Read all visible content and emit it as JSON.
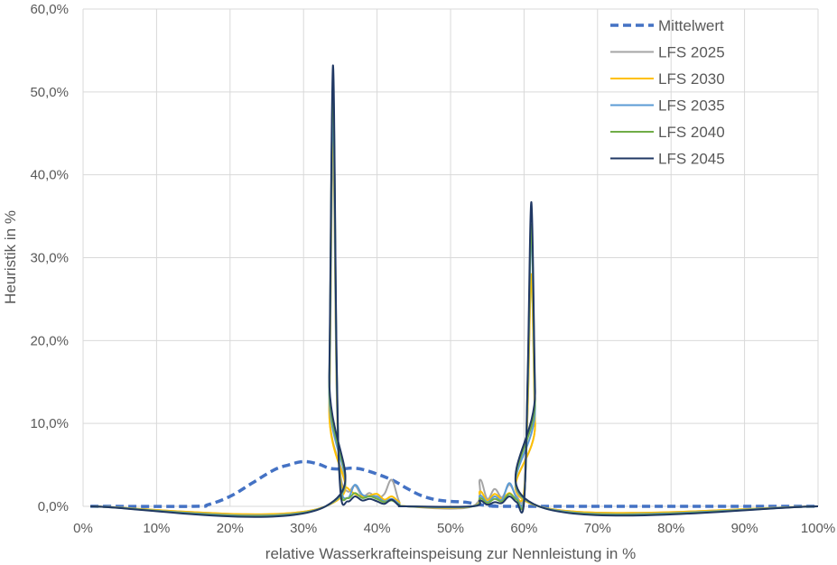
{
  "chart_data": {
    "type": "line",
    "title": "",
    "xlabel": "relative Wasserkrafteinspeisung  zur Nennleistung  in %",
    "ylabel": "Heuristik in %",
    "xlim": [
      0,
      100
    ],
    "ylim": [
      0,
      60
    ],
    "x_ticks": [
      "0%",
      "10%",
      "20%",
      "30%",
      "40%",
      "50%",
      "60%",
      "70%",
      "80%",
      "90%",
      "100%"
    ],
    "y_ticks": [
      "0,0%",
      "10,0%",
      "20,0%",
      "30,0%",
      "40,0%",
      "50,0%",
      "60,0%"
    ],
    "grid": true,
    "legend_position": "top-right",
    "series": [
      {
        "name": "Mittelwert",
        "color": "#4472C4",
        "dash": true,
        "points": [
          [
            1,
            0
          ],
          [
            15,
            0
          ],
          [
            17,
            0.2
          ],
          [
            20,
            1.2
          ],
          [
            23,
            2.8
          ],
          [
            26,
            4.4
          ],
          [
            28,
            5.0
          ],
          [
            30,
            5.4
          ],
          [
            32,
            5.1
          ],
          [
            33.5,
            4.6
          ],
          [
            35,
            4.5
          ],
          [
            37,
            4.6
          ],
          [
            39,
            4.2
          ],
          [
            42,
            3.2
          ],
          [
            44,
            2.2
          ],
          [
            46,
            1.3
          ],
          [
            48,
            0.8
          ],
          [
            50,
            0.6
          ],
          [
            52,
            0.5
          ],
          [
            54,
            0.2
          ],
          [
            56,
            0.05
          ],
          [
            60,
            0
          ],
          [
            100,
            0
          ]
        ]
      },
      {
        "name": "LFS 2025",
        "color": "#A5A5A5",
        "dash": false,
        "points": [
          [
            1,
            0
          ],
          [
            33,
            0
          ],
          [
            33.5,
            12
          ],
          [
            34,
            43
          ],
          [
            34.5,
            14
          ],
          [
            35,
            4
          ],
          [
            36,
            1.8
          ],
          [
            37,
            2.5
          ],
          [
            38,
            1.2
          ],
          [
            39,
            1.6
          ],
          [
            40,
            1.0
          ],
          [
            41,
            1.5
          ],
          [
            42,
            3.2
          ],
          [
            43,
            0.6
          ],
          [
            44,
            0
          ],
          [
            53,
            0
          ],
          [
            54,
            3.2
          ],
          [
            55,
            0.9
          ],
          [
            56,
            2.1
          ],
          [
            57,
            1.1
          ],
          [
            58,
            2.6
          ],
          [
            59,
            1.2
          ],
          [
            60,
            1.3
          ],
          [
            60.5,
            12
          ],
          [
            61,
            28
          ],
          [
            61.5,
            10
          ],
          [
            62,
            0
          ],
          [
            100,
            0
          ]
        ]
      },
      {
        "name": "LFS 2030",
        "color": "#FFC000",
        "dash": false,
        "points": [
          [
            1,
            0
          ],
          [
            33,
            0
          ],
          [
            33.5,
            12
          ],
          [
            34,
            46
          ],
          [
            34.5,
            15
          ],
          [
            35,
            3.5
          ],
          [
            36,
            2.2
          ],
          [
            37,
            1.5
          ],
          [
            38,
            1.2
          ],
          [
            39,
            1.3
          ],
          [
            40,
            1.5
          ],
          [
            41,
            0.8
          ],
          [
            42,
            1.2
          ],
          [
            43,
            0.5
          ],
          [
            44,
            0
          ],
          [
            53,
            0
          ],
          [
            54,
            1.8
          ],
          [
            55,
            0.7
          ],
          [
            56,
            1.5
          ],
          [
            57,
            0.9
          ],
          [
            58,
            1.6
          ],
          [
            59,
            0.9
          ],
          [
            60,
            1.8
          ],
          [
            60.5,
            12
          ],
          [
            61,
            28
          ],
          [
            61.5,
            10
          ],
          [
            62,
            0
          ],
          [
            100,
            0
          ]
        ]
      },
      {
        "name": "LFS 2035",
        "color": "#5B9BD5",
        "dash": false,
        "points": [
          [
            1,
            0
          ],
          [
            33,
            0
          ],
          [
            33.5,
            14
          ],
          [
            34,
            48
          ],
          [
            34.5,
            16
          ],
          [
            35,
            3
          ],
          [
            36,
            1.0
          ],
          [
            37,
            2.6
          ],
          [
            38,
            1.4
          ],
          [
            39,
            1.2
          ],
          [
            40,
            1.2
          ],
          [
            41,
            0.6
          ],
          [
            42,
            0.9
          ],
          [
            43,
            0.3
          ],
          [
            44,
            0
          ],
          [
            53,
            0
          ],
          [
            54,
            1.3
          ],
          [
            55,
            0.5
          ],
          [
            56,
            1.2
          ],
          [
            57,
            0.8
          ],
          [
            58,
            2.8
          ],
          [
            59,
            1.0
          ],
          [
            60,
            1.0
          ],
          [
            60.5,
            14
          ],
          [
            61,
            33
          ],
          [
            61.5,
            12
          ],
          [
            62,
            0
          ],
          [
            100,
            0
          ]
        ]
      },
      {
        "name": "LFS 2040",
        "color": "#70AD47",
        "dash": false,
        "points": [
          [
            1,
            0
          ],
          [
            33,
            0
          ],
          [
            33.5,
            15
          ],
          [
            34,
            51
          ],
          [
            34.5,
            17
          ],
          [
            35,
            2.5
          ],
          [
            36,
            1.0
          ],
          [
            37,
            1.6
          ],
          [
            38,
            1.0
          ],
          [
            39,
            1.2
          ],
          [
            40,
            0.9
          ],
          [
            41,
            0.5
          ],
          [
            42,
            0.7
          ],
          [
            43,
            0.2
          ],
          [
            44,
            0
          ],
          [
            53,
            0
          ],
          [
            54,
            1.0
          ],
          [
            55,
            0.4
          ],
          [
            56,
            0.9
          ],
          [
            57,
            0.6
          ],
          [
            58,
            1.5
          ],
          [
            59,
            0.8
          ],
          [
            60,
            0.8
          ],
          [
            60.5,
            15
          ],
          [
            61,
            34
          ],
          [
            61.5,
            13
          ],
          [
            62,
            0
          ],
          [
            100,
            0
          ]
        ]
      },
      {
        "name": "LFS 2045",
        "color": "#203864",
        "dash": false,
        "points": [
          [
            1,
            0
          ],
          [
            33,
            0
          ],
          [
            33.5,
            16
          ],
          [
            34,
            53.2
          ],
          [
            34.5,
            18
          ],
          [
            35,
            2
          ],
          [
            36,
            0.6
          ],
          [
            37,
            1.2
          ],
          [
            38,
            0.7
          ],
          [
            39,
            0.9
          ],
          [
            40,
            0.6
          ],
          [
            41,
            0.3
          ],
          [
            42,
            0.8
          ],
          [
            43,
            0.1
          ],
          [
            44,
            0
          ],
          [
            53,
            0
          ],
          [
            54,
            0.7
          ],
          [
            55,
            0.2
          ],
          [
            56,
            0.5
          ],
          [
            57,
            0.4
          ],
          [
            58,
            1.2
          ],
          [
            59,
            0.5
          ],
          [
            60,
            0.5
          ],
          [
            60.5,
            16
          ],
          [
            61,
            36.7
          ],
          [
            61.5,
            14
          ],
          [
            62,
            0
          ],
          [
            100,
            0
          ]
        ]
      }
    ]
  }
}
